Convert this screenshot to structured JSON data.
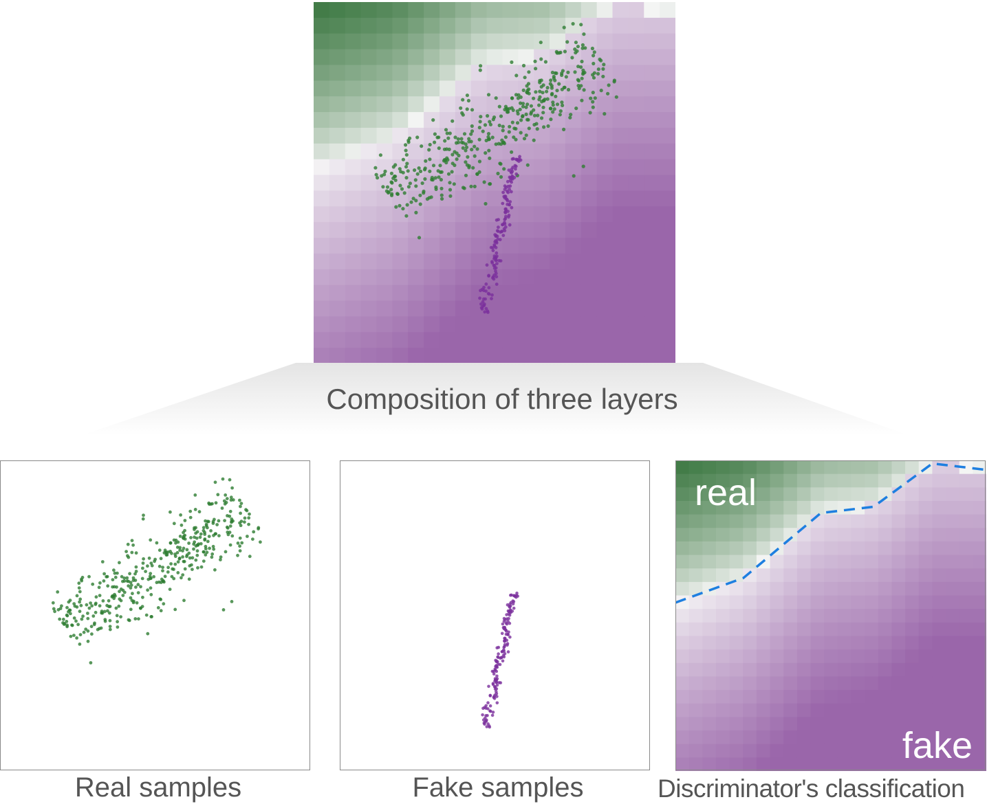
{
  "captions": {
    "composition": "Composition of three layers",
    "real_samples": "Real samples",
    "fake_samples": "Fake samples",
    "discriminator": "Discriminator's classification"
  },
  "heatmap_labels": {
    "real": "real",
    "fake": "fake"
  },
  "colors": {
    "real_point": "#2e7d32",
    "fake_point": "#7b2f9c",
    "real_region": "#2f6f35",
    "fake_region": "#9a66aa",
    "boundary_line": "#1e7fe0",
    "caption_text": "#555555",
    "frame": "#888888"
  },
  "decision_boundary": {
    "style": "dashed",
    "points": [
      [
        0.0,
        0.54
      ],
      [
        0.22,
        0.62
      ],
      [
        0.47,
        0.83
      ],
      [
        0.64,
        0.85
      ],
      [
        0.83,
        0.99
      ],
      [
        1.0,
        0.97
      ]
    ]
  },
  "real_distribution": {
    "shape": "elongated cloud",
    "axis_start": [
      0.2,
      0.47
    ],
    "axis_end": [
      0.8,
      0.84
    ],
    "spread": 0.055,
    "count": 420
  },
  "fake_distribution": {
    "shape": "thin diagonal streak",
    "axis_start": [
      0.47,
      0.14
    ],
    "axis_end": [
      0.56,
      0.58
    ],
    "spread": 0.008,
    "count": 150
  }
}
